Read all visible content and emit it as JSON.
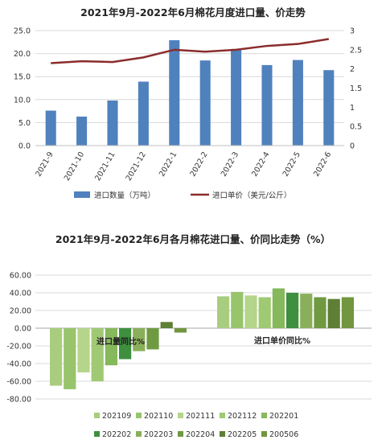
{
  "chart_data": [
    {
      "type": "bar",
      "title": "2021年9月-2022年6月棉花月度进口量、价走势",
      "categories": [
        "2021-9",
        "2021-10",
        "2021-11",
        "2021-12",
        "2022-1",
        "2022-2",
        "2022-3",
        "2022-4",
        "2022-5",
        "2022-6"
      ],
      "series": [
        {
          "name": "进口数量（万吨）",
          "type": "bar",
          "axis": "left",
          "color": "#4f81bd",
          "values": [
            7.6,
            6.3,
            9.8,
            13.9,
            22.9,
            18.5,
            21.0,
            17.5,
            18.6,
            16.4
          ]
        },
        {
          "name": "进口单价（美元/公斤）",
          "type": "line",
          "axis": "right",
          "color": "#8b2c2c",
          "values": [
            2.15,
            2.2,
            2.18,
            2.3,
            2.5,
            2.45,
            2.5,
            2.6,
            2.65,
            2.78
          ]
        }
      ],
      "yleft": {
        "ticks": [
          "0.0",
          "5.0",
          "10.0",
          "15.0",
          "20.0",
          "25.0"
        ],
        "ylim": [
          0,
          25
        ]
      },
      "yright": {
        "ticks": [
          "0",
          "0.5",
          "1",
          "1.5",
          "2",
          "2.5",
          "3"
        ],
        "ylim": [
          0,
          3
        ]
      },
      "grid": true,
      "legend": "bottom"
    },
    {
      "type": "bar",
      "title": "2021年9月-2022年6月各月棉花进口量、价同比走势（%）",
      "groups": [
        "进口量同比%",
        "进口单价同比%"
      ],
      "series": [
        {
          "name": "202109",
          "color": "#a9cd7e",
          "values": [
            -65,
            36
          ]
        },
        {
          "name": "202110",
          "color": "#98c46c",
          "values": [
            -69,
            41
          ]
        },
        {
          "name": "202111",
          "color": "#b5d58a",
          "values": [
            -50,
            37
          ]
        },
        {
          "name": "202112",
          "color": "#9fc973",
          "values": [
            -60,
            35
          ]
        },
        {
          "name": "202201",
          "color": "#86b85c",
          "values": [
            -42,
            45
          ]
        },
        {
          "name": "202202",
          "color": "#3e8f3e",
          "values": [
            -35,
            40
          ]
        },
        {
          "name": "202203",
          "color": "#8aaf5a",
          "values": [
            -26,
            39
          ]
        },
        {
          "name": "202204",
          "color": "#6f9a42",
          "values": [
            -24,
            35
          ]
        },
        {
          "name": "202205",
          "color": "#5e7f35",
          "values": [
            7,
            33
          ]
        },
        {
          "name": "200506",
          "color": "#72953f",
          "values": [
            -5,
            35
          ]
        }
      ],
      "y": {
        "ticks": [
          "60.00",
          "40.00",
          "20.00",
          "0.00",
          "-20.00",
          "-40.00",
          "-60.00",
          "-80.00"
        ],
        "ylim": [
          -80,
          60
        ]
      },
      "grid": true,
      "legend": "bottom"
    }
  ]
}
